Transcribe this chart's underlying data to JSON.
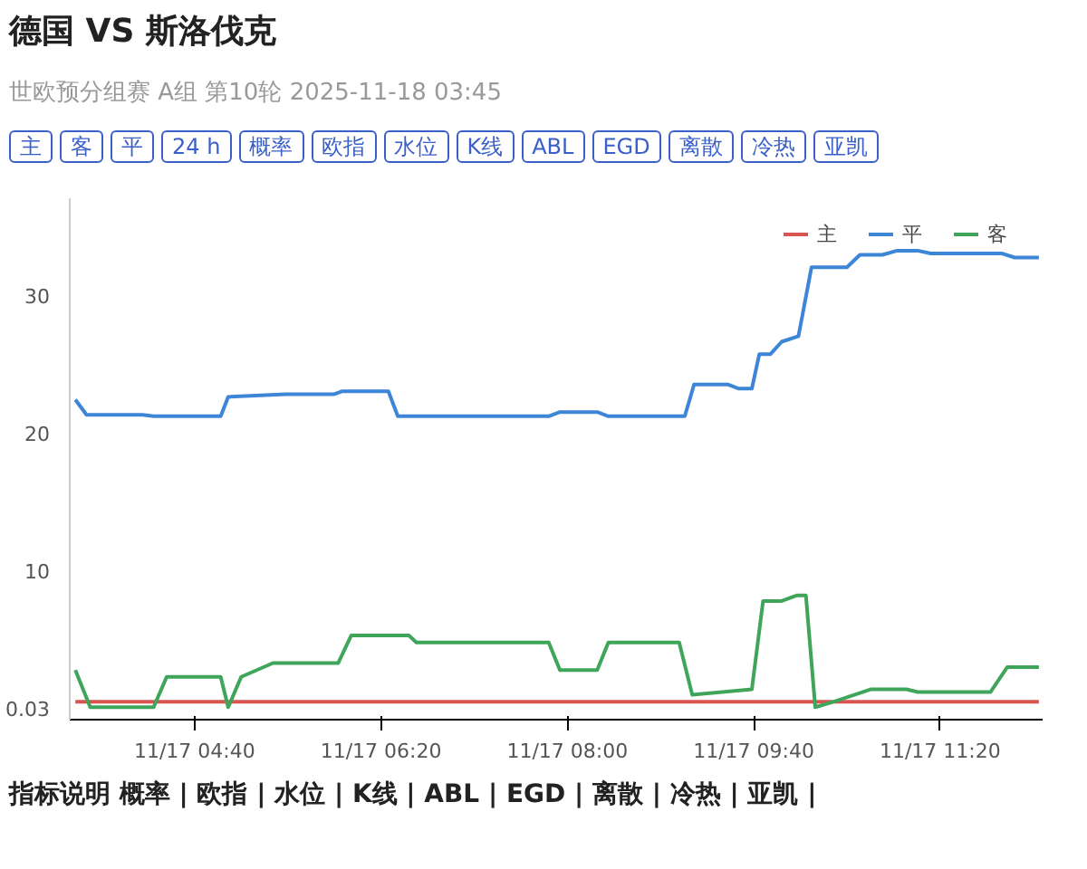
{
  "chart_data": {
    "type": "line",
    "title": "德国 VS 斯洛伐克",
    "subtitle": "世欧预分组赛 A组 第10轮 2025-11-18 03:45",
    "annotations": [
      "主",
      "客",
      "平",
      "24 h",
      "概率",
      "欧指",
      "水位",
      "K线",
      "ABL",
      "EGD",
      "离散",
      "冷热",
      "亚凯",
      "指标说明 概率 | 欧指 | 水位 | K线 | ABL | EGD | 离散 | 冷热 | 亚凯 |"
    ],
    "xlim": [
      "2025-11-17T03:33",
      "2025-11-17T12:15"
    ],
    "ylim": [
      -0.8,
      37
    ],
    "xticks": [
      {
        "value": "2025-11-17T04:40",
        "label": "11/17 04:40"
      },
      {
        "value": "2025-11-17T06:20",
        "label": "11/17 06:20"
      },
      {
        "value": "2025-11-17T08:00",
        "label": "11/17 08:00"
      },
      {
        "value": "2025-11-17T09:40",
        "label": "11/17 09:40"
      },
      {
        "value": "2025-11-17T11:20",
        "label": "11/17 11:20"
      }
    ],
    "yticks": [
      0.03,
      10,
      20,
      30
    ],
    "legend": "top right",
    "series": [
      {
        "name": "主",
        "color": "#d9534f",
        "x": [
          "2025-11-17T03:36",
          "2025-11-17T12:13"
        ],
        "values": [
          0.5,
          0.5
        ]
      },
      {
        "name": "平",
        "color": "#3d85d6",
        "x": [
          "2025-11-17T03:36",
          "2025-11-17T03:42",
          "2025-11-17T04:12",
          "2025-11-17T04:18",
          "2025-11-17T04:54",
          "2025-11-17T04:58",
          "2025-11-17T05:29",
          "2025-11-17T05:55",
          "2025-11-17T05:59",
          "2025-11-17T06:24",
          "2025-11-17T06:29",
          "2025-11-17T07:50",
          "2025-11-17T07:56",
          "2025-11-17T08:16",
          "2025-11-17T08:22",
          "2025-11-17T09:03",
          "2025-11-17T09:08",
          "2025-11-17T09:26",
          "2025-11-17T09:32",
          "2025-11-17T09:39",
          "2025-11-17T09:43",
          "2025-11-17T09:49",
          "2025-11-17T09:55",
          "2025-11-17T10:04",
          "2025-11-17T10:11",
          "2025-11-17T10:30",
          "2025-11-17T10:37",
          "2025-11-17T10:49",
          "2025-11-17T10:57",
          "2025-11-17T11:08",
          "2025-11-17T11:15",
          "2025-11-17T11:53",
          "2025-11-17T12:00",
          "2025-11-17T12:13"
        ],
        "values": [
          22.4,
          21.3,
          21.3,
          21.2,
          21.2,
          22.6,
          22.8,
          22.8,
          23.0,
          23.0,
          21.2,
          21.2,
          21.5,
          21.5,
          21.2,
          21.2,
          23.5,
          23.5,
          23.2,
          23.2,
          25.7,
          25.7,
          26.6,
          27,
          32,
          32,
          32.9,
          32.9,
          33.2,
          33.2,
          33,
          33,
          32.7,
          32.7
        ]
      },
      {
        "name": "客",
        "color": "#3fa55a",
        "x": [
          "2025-11-17T03:36",
          "2025-11-17T03:44",
          "2025-11-17T04:18",
          "2025-11-17T04:25",
          "2025-11-17T04:54",
          "2025-11-17T04:58",
          "2025-11-17T05:05",
          "2025-11-17T05:22",
          "2025-11-17T05:57",
          "2025-11-17T06:04",
          "2025-11-17T06:35",
          "2025-11-17T06:39",
          "2025-11-17T07:50",
          "2025-11-17T07:56",
          "2025-11-17T08:16",
          "2025-11-17T08:22",
          "2025-11-17T09:00",
          "2025-11-17T09:07",
          "2025-11-17T09:39",
          "2025-11-17T09:45",
          "2025-11-17T09:55",
          "2025-11-17T10:03",
          "2025-11-17T10:08",
          "2025-11-17T10:13",
          "2025-11-17T10:23",
          "2025-11-17T10:43",
          "2025-11-17T11:02",
          "2025-11-17T11:08",
          "2025-11-17T11:47",
          "2025-11-17T11:56",
          "2025-11-17T12:13"
        ],
        "values": [
          2.8,
          0.1,
          0.1,
          2.3,
          2.3,
          0.1,
          2.3,
          3.3,
          3.3,
          5.3,
          5.3,
          4.8,
          4.8,
          2.8,
          2.8,
          4.8,
          4.8,
          1.0,
          1.4,
          7.8,
          7.8,
          8.2,
          8.2,
          0.1,
          0.5,
          1.4,
          1.4,
          1.2,
          1.2,
          3.0,
          3.0
        ]
      }
    ]
  }
}
